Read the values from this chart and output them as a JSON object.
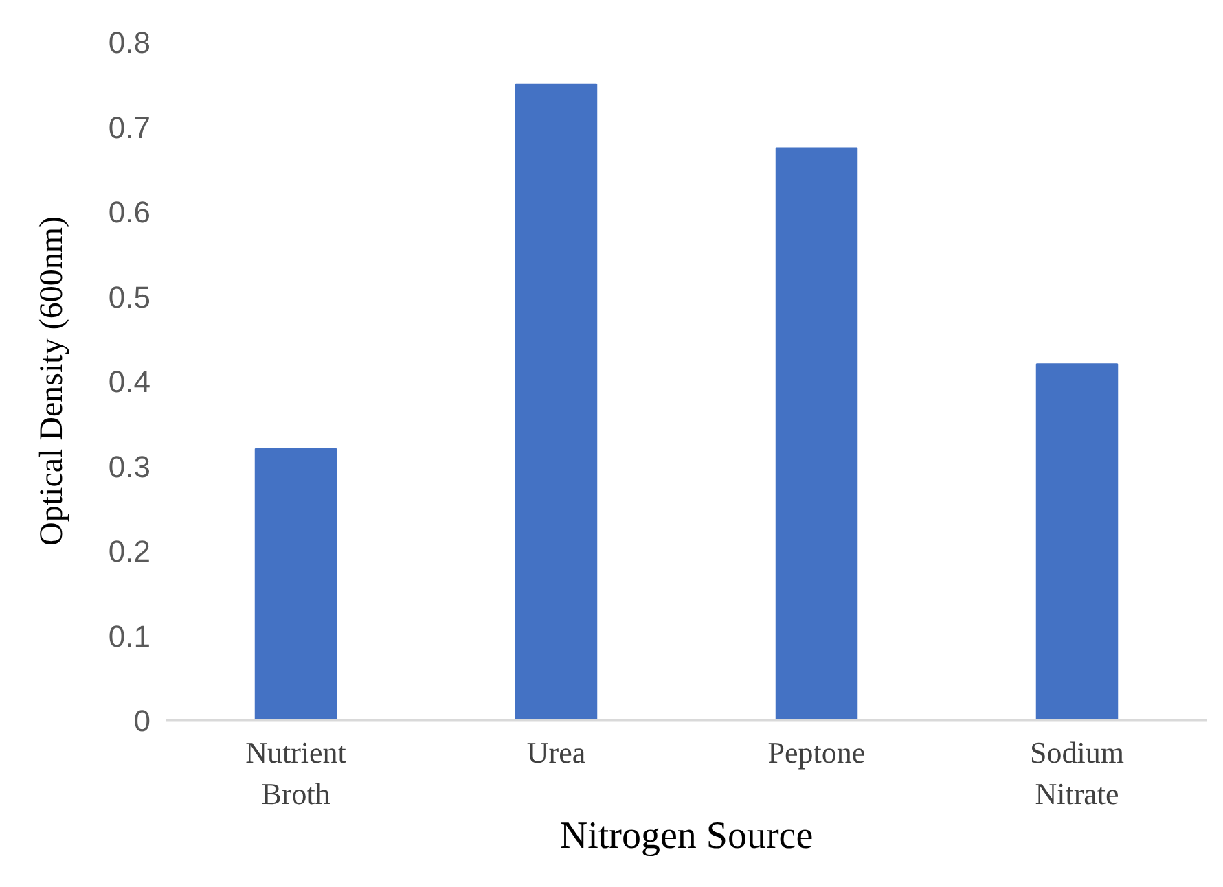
{
  "chart_data": {
    "type": "bar",
    "xlabel": "Nitrogen Source",
    "ylabel": "Optical Density (600nm)",
    "categories": [
      "Nutrient Broth",
      "Urea",
      "Peptone",
      "Sodium Nitrate"
    ],
    "values": [
      0.32,
      0.75,
      0.675,
      0.42
    ],
    "color": "#4472c4",
    "ylim": [
      0,
      0.8
    ],
    "yticks": [
      0,
      0.1,
      0.2,
      0.3,
      0.4,
      0.5,
      0.6,
      0.7,
      0.8
    ],
    "grid": false
  }
}
